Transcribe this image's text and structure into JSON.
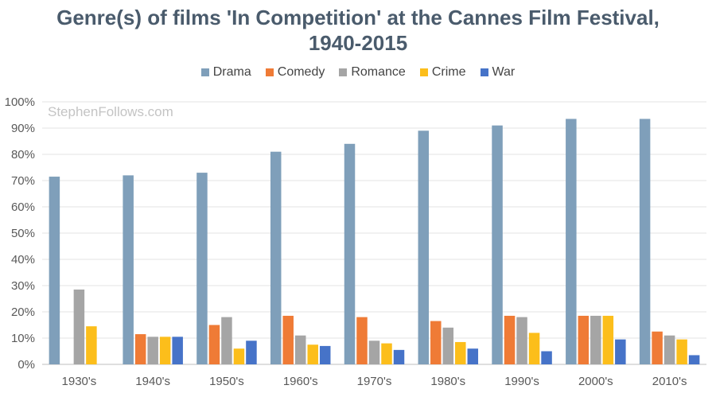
{
  "chart_data": {
    "type": "bar",
    "title_lines": [
      "Genre(s) of films 'In Competition' at the Cannes Film Festival,",
      "1940-2015"
    ],
    "watermark": "StephenFollows.com",
    "categories": [
      "1930's",
      "1940's",
      "1950's",
      "1960's",
      "1970's",
      "1980's",
      "1990's",
      "2000's",
      "2010's"
    ],
    "series": [
      {
        "name": "Drama",
        "color": "#7f9fba",
        "values": [
          71.5,
          72,
          73,
          81,
          84,
          89,
          91,
          93.5,
          93.5
        ]
      },
      {
        "name": "Comedy",
        "color": "#ef7b36",
        "values": [
          0,
          11.5,
          15,
          18.5,
          18,
          16.5,
          18.5,
          18.5,
          12.5
        ]
      },
      {
        "name": "Romance",
        "color": "#a5a5a5",
        "values": [
          28.5,
          10.5,
          18,
          11,
          9,
          14,
          18,
          18.5,
          11
        ]
      },
      {
        "name": "Crime",
        "color": "#fcbe1b",
        "values": [
          14.5,
          10.5,
          6,
          7.5,
          8,
          8.5,
          12,
          18.5,
          9.5
        ]
      },
      {
        "name": "War",
        "color": "#4673c8",
        "values": [
          0,
          10.5,
          9,
          7,
          5.5,
          6,
          5,
          9.5,
          3.5
        ]
      }
    ],
    "yticks": [
      "0%",
      "10%",
      "20%",
      "30%",
      "40%",
      "50%",
      "60%",
      "70%",
      "80%",
      "90%",
      "100%"
    ],
    "ylim": [
      0,
      100
    ],
    "grid": true,
    "legend_position": "top",
    "xlabel": "",
    "ylabel": ""
  }
}
